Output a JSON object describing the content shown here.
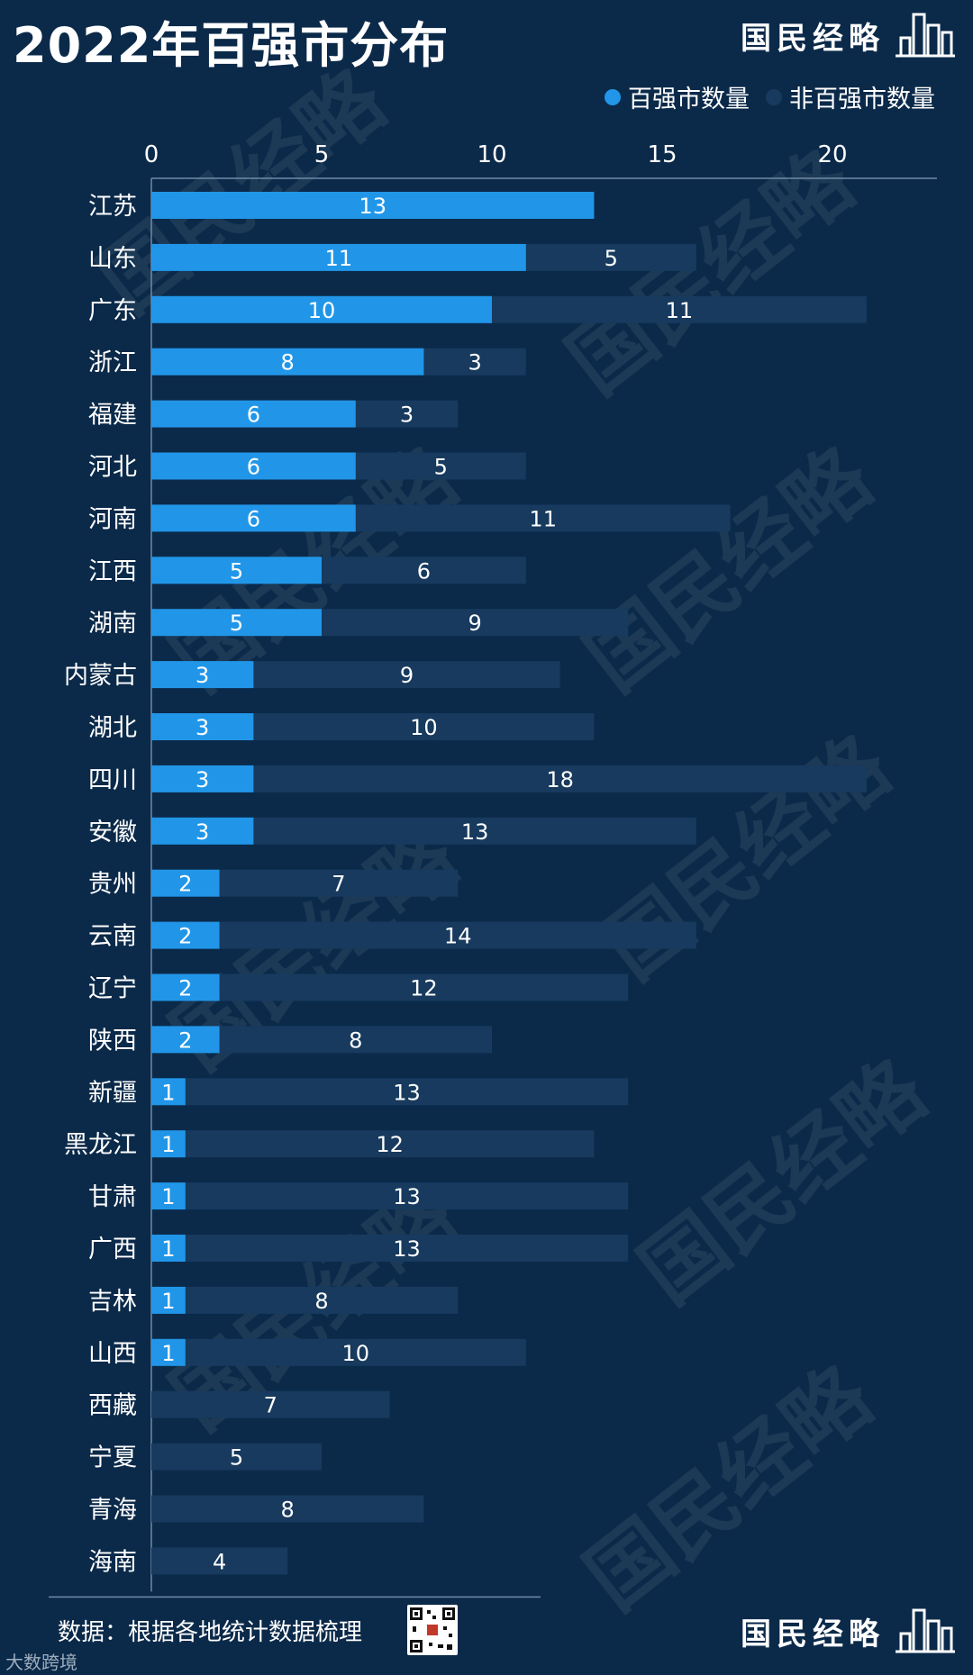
{
  "title": "2022年百强市分布",
  "brand": {
    "name": "国民经略"
  },
  "legend": {
    "series1": {
      "label": "百强市数量",
      "color": "#2196e8"
    },
    "series2": {
      "label": "非百强市数量",
      "color": "#173a5e"
    }
  },
  "source_text": "数据：根据各地统计数据梳理",
  "corner_watermark": "大数跨境",
  "chart_data": {
    "type": "bar",
    "orientation": "horizontal",
    "stacked": true,
    "title": "2022年百强市分布",
    "xlim": [
      0,
      23
    ],
    "xticks": [
      0,
      5,
      10,
      15,
      20
    ],
    "categories": [
      "江苏",
      "山东",
      "广东",
      "浙江",
      "福建",
      "河北",
      "河南",
      "江西",
      "湖南",
      "内蒙古",
      "湖北",
      "四川",
      "安徽",
      "贵州",
      "云南",
      "辽宁",
      "陕西",
      "新疆",
      "黑龙江",
      "甘肃",
      "广西",
      "吉林",
      "山西",
      "西藏",
      "宁夏",
      "青海",
      "海南"
    ],
    "series": [
      {
        "name": "百强市数量",
        "color": "#2196e8",
        "values": [
          13,
          11,
          10,
          8,
          6,
          6,
          6,
          5,
          5,
          3,
          3,
          3,
          3,
          2,
          2,
          2,
          2,
          1,
          1,
          1,
          1,
          1,
          1,
          0,
          0,
          0,
          0
        ]
      },
      {
        "name": "非百强市数量",
        "color": "#173a5e",
        "values": [
          0,
          5,
          11,
          3,
          3,
          5,
          11,
          6,
          9,
          9,
          10,
          18,
          13,
          7,
          14,
          12,
          8,
          13,
          12,
          13,
          13,
          8,
          10,
          7,
          5,
          8,
          4
        ]
      }
    ]
  }
}
